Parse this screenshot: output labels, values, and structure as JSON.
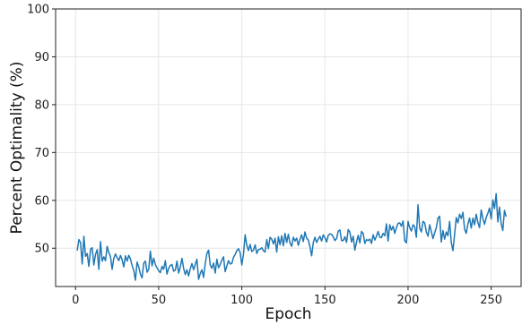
{
  "chart_data": {
    "type": "line",
    "xlabel": "Epoch",
    "ylabel": "Percent Optimality (%)",
    "xlim": [
      -12,
      268
    ],
    "ylim": [
      42,
      100
    ],
    "xticks": [
      0,
      50,
      100,
      150,
      200,
      250
    ],
    "yticks": [
      50,
      60,
      70,
      80,
      90,
      100
    ],
    "grid": true,
    "line_color": "#1f77b4",
    "series": [
      {
        "values": [
          49.5,
          51.8,
          51.2,
          46.7,
          52.5,
          48.3,
          48.9,
          46.2,
          49.8,
          50.1,
          46.5,
          48.7,
          49.7,
          45.6,
          51.4,
          47.3,
          48.2,
          47.4,
          50.4,
          49.1,
          48.3,
          45.6,
          47.9,
          48.8,
          48.0,
          47.4,
          48.5,
          47.6,
          46.1,
          48.4,
          47.3,
          48.5,
          47.8,
          46.4,
          45.4,
          43.3,
          47.1,
          46.1,
          44.6,
          43.8,
          46.9,
          47.3,
          45.0,
          45.6,
          49.4,
          46.3,
          47.9,
          46.6,
          45.9,
          45.3,
          44.9,
          46.2,
          45.6,
          47.4,
          44.6,
          45.8,
          46.4,
          46.6,
          45.2,
          45.4,
          47.3,
          44.8,
          46.1,
          47.9,
          45.8,
          44.5,
          45.5,
          44.2,
          45.7,
          46.8,
          45.5,
          46.6,
          47.7,
          43.5,
          44.7,
          45.5,
          43.9,
          46.8,
          48.9,
          49.6,
          46.5,
          45.8,
          46.9,
          44.8,
          47.7,
          45.9,
          46.6,
          47.5,
          48.2,
          45.1,
          46.3,
          47.4,
          46.7,
          46.8,
          48.1,
          48.7,
          49.5,
          49.9,
          49.1,
          46.5,
          48.7,
          52.8,
          50.6,
          49.5,
          50.8,
          49.3,
          49.6,
          50.7,
          48.9,
          49.7,
          49.8,
          50.1,
          49.5,
          49.2,
          51.8,
          49.9,
          52.3,
          51.9,
          50.9,
          52.1,
          49.2,
          52.4,
          50.7,
          52.6,
          50.5,
          53.1,
          51.2,
          52.9,
          51.1,
          50.4,
          52.3,
          51.5,
          52.1,
          50.6,
          51.9,
          52.8,
          51.4,
          53.4,
          52.1,
          51.7,
          50.3,
          48.4,
          51.2,
          52.3,
          51.2,
          51.9,
          52.5,
          51.5,
          52.8,
          52.2,
          51.3,
          52.7,
          53.0,
          52.9,
          52.4,
          51.6,
          52.0,
          53.6,
          53.8,
          51.6,
          51.6,
          52.4,
          51.2,
          53.9,
          53.4,
          51.3,
          52.5,
          49.6,
          51.3,
          52.7,
          51.1,
          53.5,
          53.1,
          51.0,
          51.8,
          51.6,
          51.9,
          51.0,
          52.8,
          51.7,
          52.5,
          53.5,
          52.3,
          52.2,
          53.1,
          52.6,
          55.1,
          51.5,
          54.9,
          53.8,
          54.6,
          53.1,
          54.3,
          55.2,
          55.3,
          54.6,
          55.7,
          51.6,
          51.1,
          55.6,
          54.3,
          53.6,
          54.9,
          54.5,
          52.3,
          59.1,
          54.2,
          53.4,
          55.6,
          55.3,
          53.4,
          52.5,
          54.9,
          53.5,
          52.0,
          53.2,
          54.3,
          56.3,
          56.7,
          51.3,
          53.7,
          51.9,
          53.4,
          52.6,
          55.6,
          51.2,
          49.5,
          52.9,
          56.4,
          55.3,
          57.1,
          56.2,
          57.5,
          54.0,
          53.1,
          55.1,
          56.3,
          54.2,
          56.3,
          54.9,
          57.1,
          55.4,
          54.3,
          58.0,
          56.2,
          55.0,
          56.4,
          57.3,
          58.4,
          56.1,
          60.1,
          58.3,
          61.4,
          55.5,
          58.6,
          55.1,
          53.7,
          57.9,
          56.6
        ]
      }
    ]
  }
}
